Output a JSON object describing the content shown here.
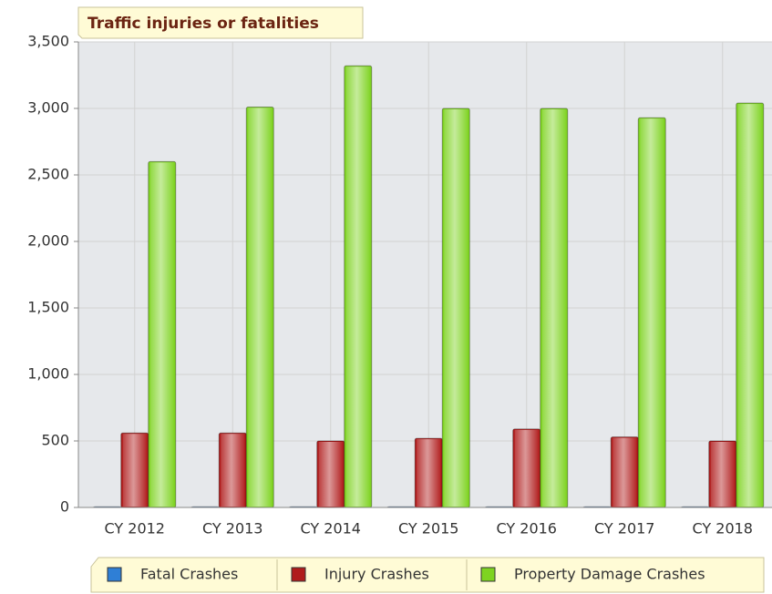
{
  "chart_data": {
    "type": "bar",
    "title": "Traffic injuries or fatalities",
    "categories": [
      "CY 2012",
      "CY 2013",
      "CY 2014",
      "CY 2015",
      "CY 2016",
      "CY 2017",
      "CY 2018"
    ],
    "series": [
      {
        "name": "Fatal Crashes",
        "color": "#2f7fd6",
        "values": [
          5,
          5,
          5,
          5,
          5,
          5,
          5
        ]
      },
      {
        "name": "Injury Crashes",
        "color": "#b01c1c",
        "values": [
          560,
          560,
          500,
          520,
          590,
          530,
          500
        ]
      },
      {
        "name": "Property Damage Crashes",
        "color": "#7ed321",
        "values": [
          2600,
          3010,
          3320,
          3000,
          3000,
          2930,
          3040
        ]
      }
    ],
    "ylim": [
      0,
      3500
    ],
    "yticks": [
      0,
      500,
      {
        "value": 1000,
        "label": "1,000"
      },
      {
        "value": 1500,
        "label": "1,500"
      },
      {
        "value": 2000,
        "label": "2,000"
      },
      {
        "value": 2500,
        "label": "2,500"
      },
      {
        "value": 3000,
        "label": "3,000"
      },
      {
        "value": 3500,
        "label": "3,500"
      }
    ],
    "grid": true
  }
}
